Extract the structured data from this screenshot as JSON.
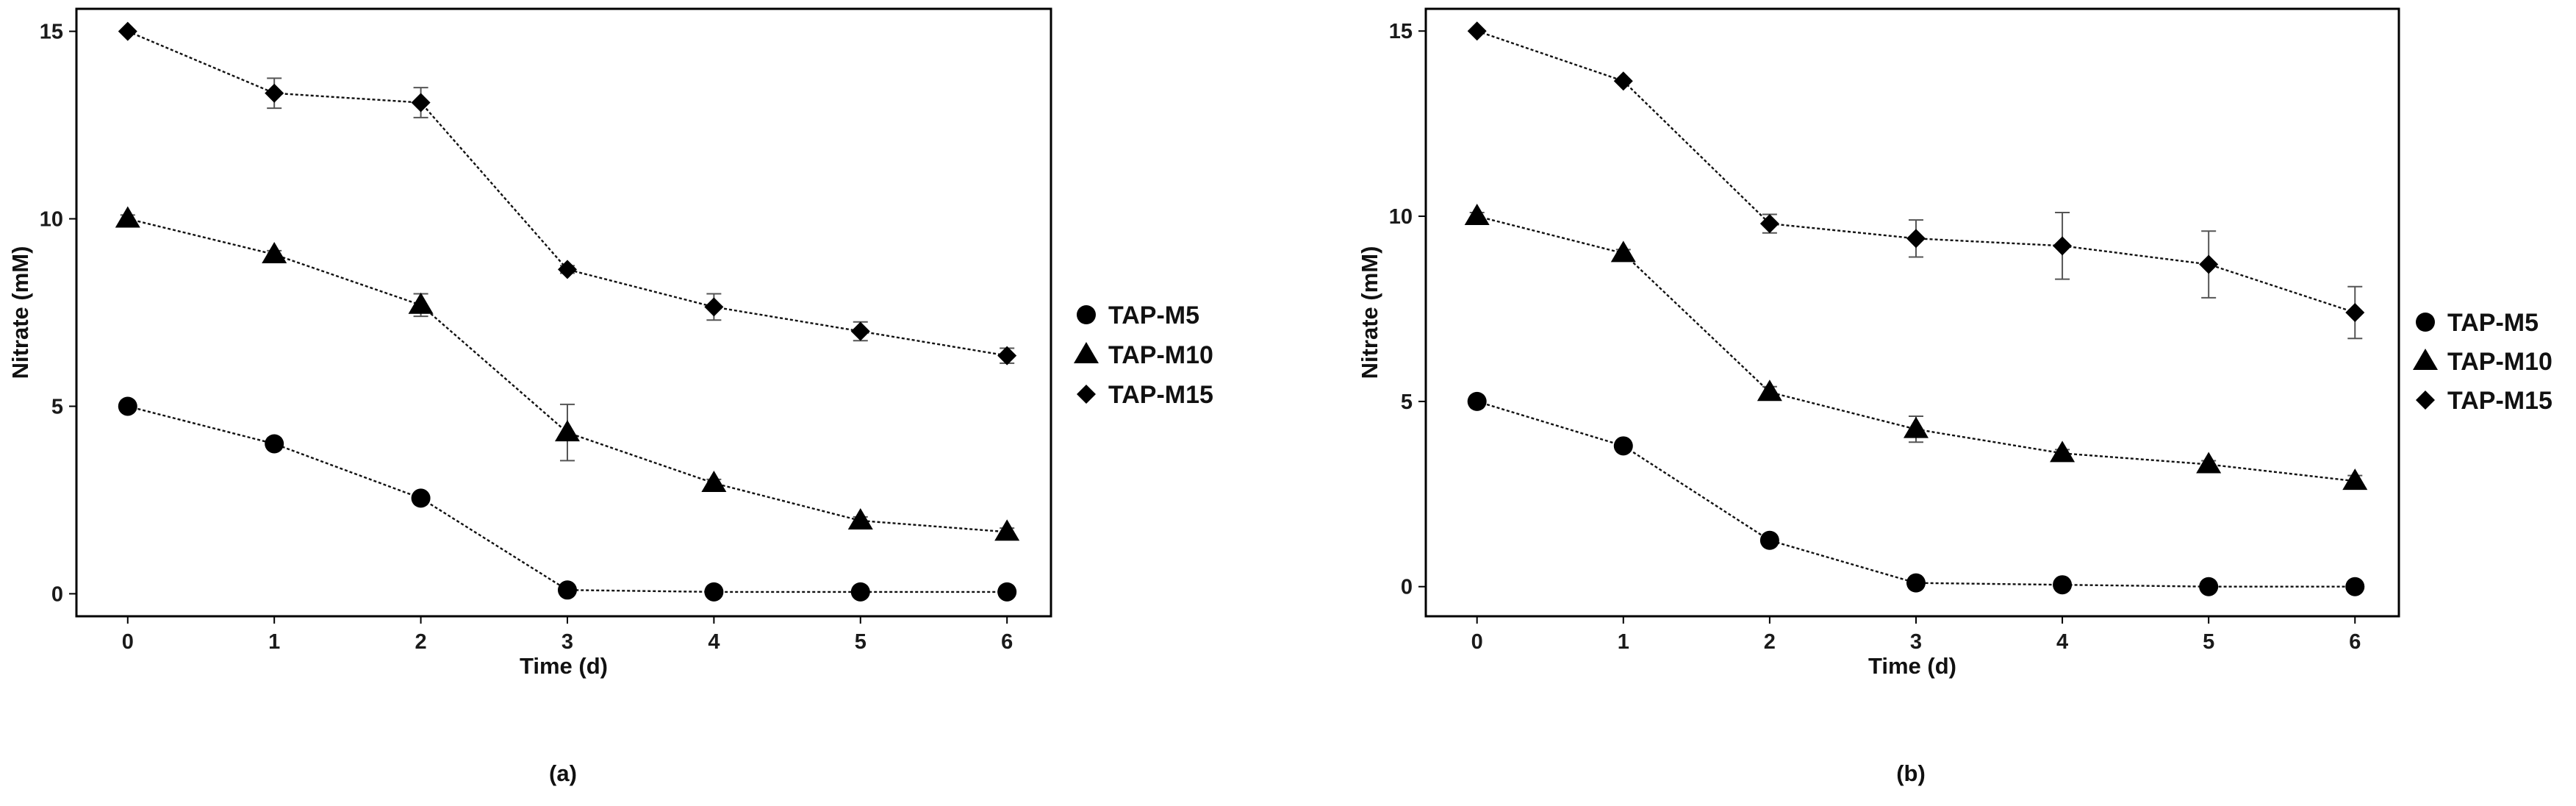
{
  "chart_data": [
    {
      "type": "line",
      "panel_label": "(a)",
      "xlabel": "Time (d)",
      "ylabel": "Nitrate (mM)",
      "xlim": [
        -0.35,
        6.3
      ],
      "ylim": [
        -0.6,
        15.6
      ],
      "x": [
        0,
        1,
        2,
        3,
        4,
        5,
        6
      ],
      "xticks": [
        "0",
        "1",
        "2",
        "3",
        "4",
        "5",
        "6"
      ],
      "yticks": [
        0,
        5,
        10,
        15
      ],
      "legend_position": "right",
      "series": [
        {
          "name": "TAP-M5",
          "marker": "circle",
          "values": [
            5.0,
            4.0,
            2.55,
            0.1,
            0.05,
            0.05,
            0.05
          ],
          "errors": [
            0.1,
            0.1,
            0.1,
            0.05,
            0.05,
            0.05,
            0.05
          ]
        },
        {
          "name": "TAP-M10",
          "marker": "triangle",
          "values": [
            10.0,
            9.05,
            7.7,
            4.3,
            2.95,
            1.95,
            1.65
          ],
          "errors": [
            0.1,
            0.1,
            0.3,
            0.75,
            0.1,
            0.1,
            0.1
          ]
        },
        {
          "name": "TAP-M15",
          "marker": "diamond",
          "values": [
            15.0,
            13.35,
            13.1,
            8.65,
            7.65,
            7.0,
            6.35
          ],
          "errors": [
            0.05,
            0.4,
            0.4,
            0.1,
            0.35,
            0.25,
            0.2
          ]
        }
      ]
    },
    {
      "type": "line",
      "panel_label": "(b)",
      "xlabel": "Time (d)",
      "ylabel": "Nitrate (mM)",
      "xlim": [
        -0.35,
        6.3
      ],
      "ylim": [
        -0.8,
        15.6
      ],
      "x": [
        0,
        1,
        2,
        3,
        4,
        5,
        6
      ],
      "xticks": [
        "0",
        "1",
        "2",
        "3",
        "4",
        "5",
        "6"
      ],
      "yticks": [
        0,
        5,
        10,
        15
      ],
      "legend_position": "right",
      "series": [
        {
          "name": "TAP-M5",
          "marker": "circle",
          "values": [
            5.0,
            3.8,
            1.25,
            0.1,
            0.05,
            0.0,
            0.0
          ],
          "errors": [
            0.1,
            0.1,
            0.1,
            0.05,
            0.05,
            0.05,
            0.05
          ]
        },
        {
          "name": "TAP-M10",
          "marker": "triangle",
          "values": [
            10.0,
            9.0,
            5.25,
            4.25,
            3.6,
            3.3,
            2.85
          ],
          "errors": [
            0.1,
            0.1,
            0.15,
            0.35,
            0.1,
            0.1,
            0.15
          ]
        },
        {
          "name": "TAP-M15",
          "marker": "diamond",
          "values": [
            15.0,
            13.65,
            9.8,
            9.4,
            9.2,
            8.7,
            7.4
          ],
          "errors": [
            0.05,
            0.05,
            0.25,
            0.5,
            0.9,
            0.9,
            0.7
          ]
        }
      ]
    }
  ]
}
